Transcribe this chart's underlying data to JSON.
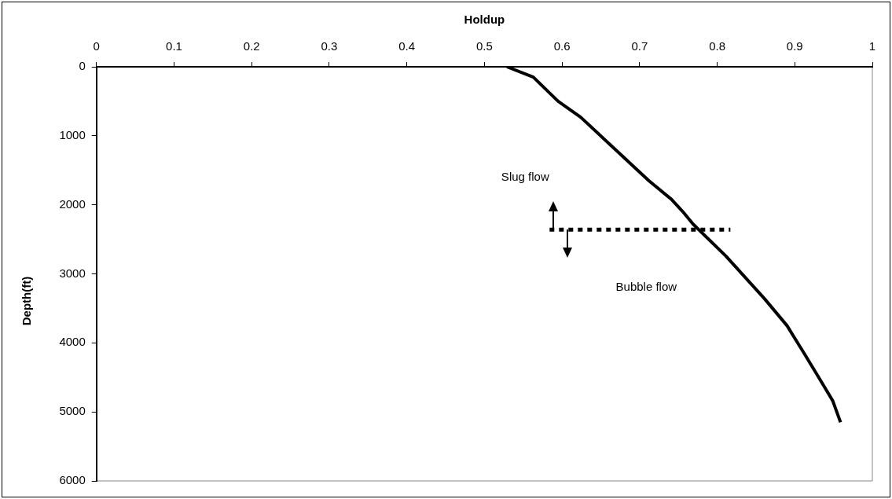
{
  "chart_data": {
    "type": "line",
    "xlabel": "Holdup",
    "ylabel": "Depth(ft)",
    "xlim": [
      0,
      1
    ],
    "xticks": [
      0,
      0.1,
      0.2,
      0.3,
      0.4,
      0.5,
      0.6,
      0.7,
      0.8,
      0.9,
      1
    ],
    "ylim": [
      6000,
      0
    ],
    "yticks": [
      0,
      1000,
      2000,
      3000,
      4000,
      5000,
      6000
    ],
    "grid": false,
    "legend": false,
    "marker": "none",
    "series": [
      {
        "color": "#000000",
        "line_style": "solid",
        "x": [
          0.529,
          0.563,
          0.595,
          0.624,
          0.666,
          0.712,
          0.741,
          0.755,
          0.769,
          0.811,
          0.861,
          0.89,
          0.912,
          0.933,
          0.949,
          0.959
        ],
        "values": [
          0,
          150,
          500,
          730,
          1170,
          1650,
          1920,
          2090,
          2280,
          2740,
          3360,
          3750,
          4150,
          4540,
          4840,
          5150
        ]
      },
      {
        "color": "#000000",
        "line_style": "dotted",
        "x": [
          0.584,
          0.817
        ],
        "values": [
          2360,
          2360
        ]
      }
    ],
    "annotations": [
      "Slug flow",
      "Bubble flow"
    ]
  }
}
